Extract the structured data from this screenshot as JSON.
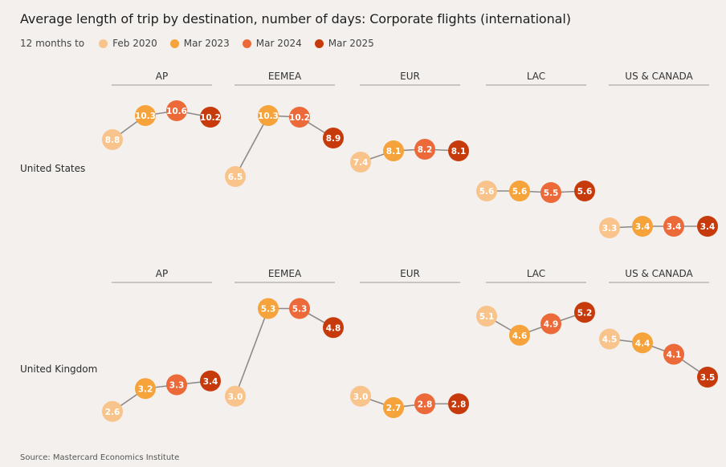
{
  "title": "Average length of trip by destination, number of days: Corporate flights (international)",
  "legend": {
    "lead": "12 months to",
    "items": [
      {
        "label": "Feb 2020",
        "color": "#f8c48c"
      },
      {
        "label": "Mar 2023",
        "color": "#f5a33a"
      },
      {
        "label": "Mar 2024",
        "color": "#ec6a3a"
      },
      {
        "label": "Mar 2025",
        "color": "#c63a0c"
      }
    ]
  },
  "source": "Source: Mastercard Economics Institute",
  "chart_data": {
    "type": "line",
    "series_names": [
      "Feb 2020",
      "Mar 2023",
      "Mar 2024",
      "Mar 2025"
    ],
    "panels": [
      "AP",
      "EEMEA",
      "EUR",
      "LAC",
      "US & CANADA"
    ],
    "rows": [
      {
        "name": "United States",
        "ylim": [
          2.5,
          11.5
        ],
        "values": {
          "AP": [
            8.8,
            10.3,
            10.6,
            10.2
          ],
          "EEMEA": [
            6.5,
            10.3,
            10.2,
            8.9
          ],
          "EUR": [
            7.4,
            8.1,
            8.2,
            8.1
          ],
          "LAC": [
            5.6,
            5.6,
            5.5,
            5.6
          ],
          "US & CANADA": [
            3.3,
            3.4,
            3.4,
            3.4
          ]
        }
      },
      {
        "name": "United Kingdom",
        "ylim": [
          2.3,
          5.5
        ],
        "values": {
          "AP": [
            2.6,
            3.2,
            3.3,
            3.4
          ],
          "EEMEA": [
            3.0,
            5.3,
            5.3,
            4.8
          ],
          "EUR": [
            3.0,
            2.7,
            2.8,
            2.8
          ],
          "LAC": [
            5.1,
            4.6,
            4.9,
            5.2
          ],
          "US & CANADA": [
            4.5,
            4.4,
            4.1,
            3.5
          ]
        }
      }
    ]
  }
}
